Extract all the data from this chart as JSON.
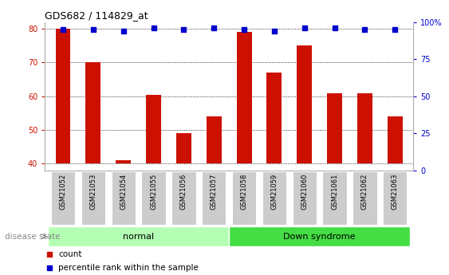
{
  "title": "GDS682 / 114829_at",
  "samples": [
    "GSM21052",
    "GSM21053",
    "GSM21054",
    "GSM21055",
    "GSM21056",
    "GSM21057",
    "GSM21058",
    "GSM21059",
    "GSM21060",
    "GSM21061",
    "GSM21062",
    "GSM21063"
  ],
  "counts": [
    80,
    70,
    41,
    60.5,
    49,
    54,
    79,
    67,
    75,
    61,
    61,
    54
  ],
  "percentile_ranks": [
    95,
    95,
    94,
    96,
    95,
    96,
    95,
    94,
    96,
    96,
    95,
    95
  ],
  "bar_bottom": 40,
  "bar_color": "#cc1100",
  "dot_color": "#0000cc",
  "ylim_left": [
    38,
    82
  ],
  "ylim_right": [
    0,
    100
  ],
  "yticks_left": [
    40,
    50,
    60,
    70,
    80
  ],
  "yticks_right": [
    0,
    25,
    50,
    75,
    100
  ],
  "ylabel_left_color": "#cc1100",
  "ylabel_right_color": "#0000cc",
  "groups": [
    {
      "label": "normal",
      "start": 0,
      "end": 6,
      "color": "#b3ffb3"
    },
    {
      "label": "Down syndrome",
      "start": 6,
      "end": 12,
      "color": "#44dd44"
    }
  ],
  "disease_state_label": "disease state",
  "legend_count_label": "count",
  "legend_pct_label": "percentile rank within the sample",
  "background_color": "#ffffff",
  "grid_color": "#000000",
  "bar_width": 0.5,
  "tick_bg_color": "#cccccc"
}
